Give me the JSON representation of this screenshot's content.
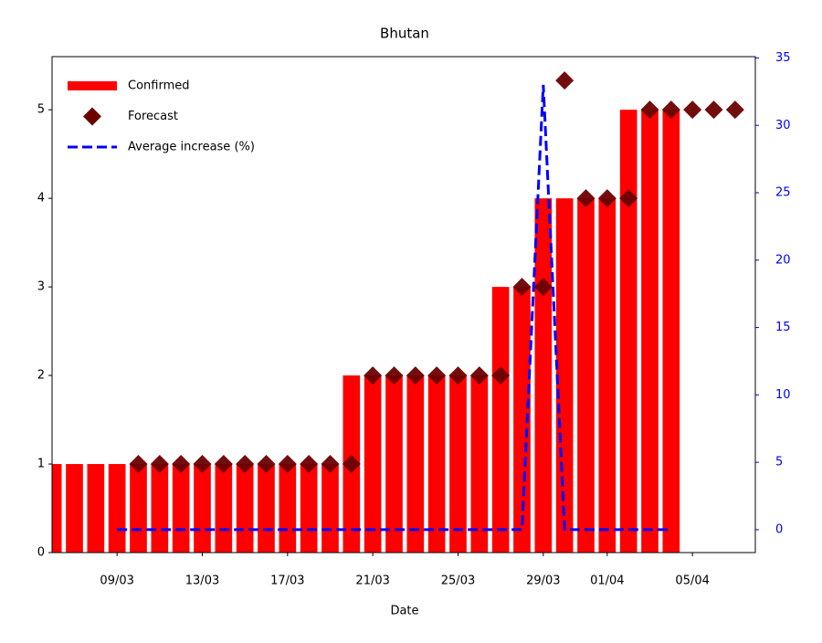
{
  "chart_data": {
    "type": "bar",
    "title": "Bhutan",
    "x_label": "Date",
    "categories": [
      null,
      null,
      null,
      "09/03",
      null,
      null,
      null,
      "13/03",
      null,
      null,
      null,
      "17/03",
      null,
      null,
      null,
      "21/03",
      null,
      null,
      null,
      "25/03",
      null,
      null,
      null,
      "29/03",
      null,
      null,
      "01/04",
      null,
      null,
      null,
      "05/04",
      null,
      null
    ],
    "series": [
      {
        "name": "Confirmed",
        "type": "bar",
        "color": "#ff0000",
        "values": [
          1,
          1,
          1,
          1,
          1,
          1,
          1,
          1,
          1,
          1,
          1,
          1,
          1,
          1,
          2,
          2,
          2,
          2,
          2,
          2,
          2,
          3,
          3,
          4,
          4,
          4,
          4,
          5,
          5,
          5,
          null,
          null,
          null
        ]
      },
      {
        "name": "Forecast",
        "type": "scatter",
        "color": "#6b0000",
        "values": [
          null,
          null,
          null,
          null,
          1,
          1,
          1,
          1,
          1,
          1,
          1,
          1,
          1,
          1,
          1,
          2,
          2,
          2,
          2,
          2,
          2,
          2,
          3,
          3,
          5.33,
          4,
          4,
          4,
          5,
          5,
          5,
          5,
          5
        ]
      },
      {
        "name": "Average increase (%)",
        "type": "line",
        "axis": "y2",
        "color": "#0000ff",
        "values": [
          null,
          null,
          null,
          0,
          0,
          0,
          0,
          0,
          0,
          0,
          0,
          0,
          0,
          0,
          0,
          0,
          0,
          0,
          0,
          0,
          0,
          0,
          0,
          33,
          0,
          0,
          0,
          0,
          0,
          0,
          null,
          null,
          null
        ]
      }
    ],
    "ylim": [
      0,
      5.6
    ],
    "yticks": [
      0,
      1,
      2,
      3,
      4,
      5
    ],
    "y2lim": [
      -1.7,
      35.1
    ],
    "y2ticks": [
      0,
      5,
      10,
      15,
      20,
      25,
      30,
      35
    ],
    "y2_color": "#0000ff",
    "legend": "upper-left"
  }
}
